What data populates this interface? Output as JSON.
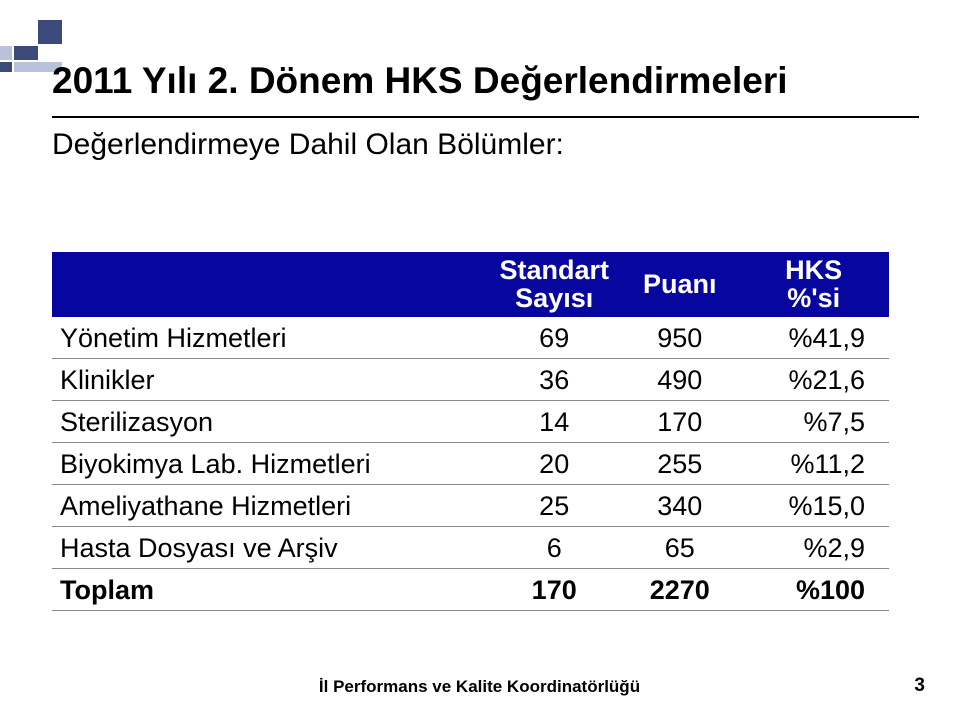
{
  "decor": {
    "color_dark": "#3b4a7a",
    "color_light": "#b8c2da"
  },
  "heading": {
    "line1": "2011 Yılı 2. Dönem HKS Değerlendirmeleri",
    "fontsize": 37,
    "subtitle": "Değerlendirmeye Dahil Olan Bölümler:",
    "subtitle_fontsize": 30,
    "rule_color": "#000000"
  },
  "table": {
    "header_bg": "#0707a0",
    "header_fg": "#ffffff",
    "border_color": "#888888",
    "body_fontsize": 27,
    "header_fontsize": 27,
    "columns": [
      {
        "label_top": "",
        "label_bot": ""
      },
      {
        "label_top": "Standart",
        "label_bot": "Sayısı"
      },
      {
        "label_top": "",
        "label_bot": "Puanı"
      },
      {
        "label_top": "HKS",
        "label_bot": "%'si"
      }
    ],
    "rows": [
      {
        "label": "Yönetim Hizmetleri",
        "std": "69",
        "puan": "950",
        "pct": "%41,9",
        "bold": false
      },
      {
        "label": "Klinikler",
        "std": "36",
        "puan": "490",
        "pct": "%21,6",
        "bold": false
      },
      {
        "label": "Sterilizasyon",
        "std": "14",
        "puan": "170",
        "pct": "%7,5",
        "bold": false
      },
      {
        "label": "Biyokimya Lab. Hizmetleri",
        "std": "20",
        "puan": "255",
        "pct": "%11,2",
        "bold": false
      },
      {
        "label": "Ameliyathane Hizmetleri",
        "std": "25",
        "puan": "340",
        "pct": "%15,0",
        "bold": false
      },
      {
        "label": "Hasta Dosyası ve Arşiv",
        "std": "6",
        "puan": "65",
        "pct": "%2,9",
        "bold": false
      },
      {
        "label": "Toplam",
        "std": "170",
        "puan": "2270",
        "pct": "%100",
        "bold": true
      }
    ]
  },
  "footer": {
    "text": "İl Performans ve Kalite Koordinatörlüğü",
    "fontsize": 17,
    "page_number": "3",
    "page_fontsize": 19
  }
}
